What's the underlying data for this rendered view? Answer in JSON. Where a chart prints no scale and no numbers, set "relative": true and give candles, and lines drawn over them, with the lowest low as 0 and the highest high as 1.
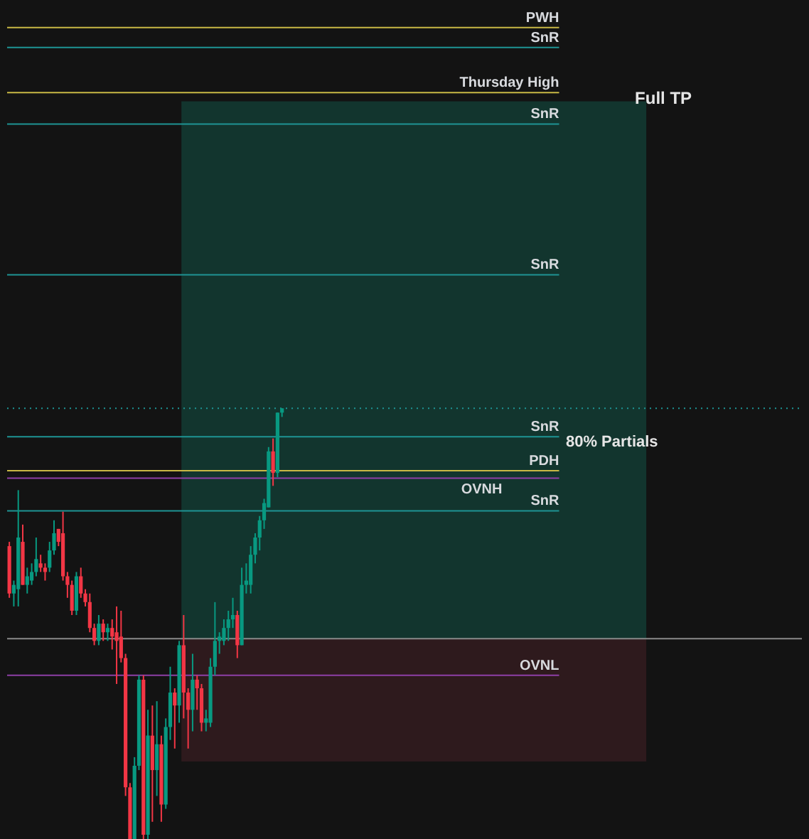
{
  "chart_data": {
    "type": "candlestick",
    "relative": true,
    "categories": [
      null,
      null,
      null,
      null,
      null,
      null,
      null,
      null,
      null,
      null,
      null,
      null,
      null,
      null,
      null,
      null,
      null,
      null,
      null,
      null,
      null,
      null,
      null,
      null,
      null,
      null,
      null,
      null,
      null,
      null,
      null,
      null,
      null,
      null,
      null,
      null,
      null,
      null,
      null,
      null,
      null,
      null,
      null,
      null,
      null,
      null,
      null,
      null,
      null,
      null,
      null,
      null,
      null,
      null,
      null,
      null,
      null,
      null,
      null,
      null,
      null,
      null
    ],
    "ohlc": [
      [
        0.68,
        0.69,
        0.56,
        0.57
      ],
      [
        0.57,
        0.6,
        0.54,
        0.59
      ],
      [
        0.58,
        0.81,
        0.54,
        0.7
      ],
      [
        0.69,
        0.73,
        0.59,
        0.59
      ],
      [
        0.59,
        0.63,
        0.57,
        0.61
      ],
      [
        0.6,
        0.64,
        0.59,
        0.62
      ],
      [
        0.62,
        0.7,
        0.61,
        0.65
      ],
      [
        0.64,
        0.66,
        0.62,
        0.63
      ],
      [
        0.63,
        0.64,
        0.6,
        0.62
      ],
      [
        0.63,
        0.69,
        0.62,
        0.67
      ],
      [
        0.67,
        0.74,
        0.66,
        0.71
      ],
      [
        0.72,
        0.72,
        0.68,
        0.69
      ],
      [
        0.71,
        0.76,
        0.6,
        0.61
      ],
      [
        0.61,
        0.62,
        0.56,
        0.59
      ],
      [
        0.59,
        0.6,
        0.52,
        0.53
      ],
      [
        0.53,
        0.62,
        0.52,
        0.61
      ],
      [
        0.61,
        0.63,
        0.56,
        0.57
      ],
      [
        0.57,
        0.58,
        0.54,
        0.55
      ],
      [
        0.55,
        0.57,
        0.48,
        0.49
      ],
      [
        0.49,
        0.5,
        0.45,
        0.46
      ],
      [
        0.46,
        0.52,
        0.45,
        0.5
      ],
      [
        0.5,
        0.51,
        0.46,
        0.48
      ],
      [
        0.48,
        0.5,
        0.46,
        0.49
      ],
      [
        0.49,
        0.51,
        0.44,
        0.47
      ],
      [
        0.48,
        0.54,
        0.36,
        0.46
      ],
      [
        0.47,
        0.53,
        0.41,
        0.42
      ],
      [
        0.42,
        0.43,
        0.1,
        0.12
      ],
      [
        0.12,
        0.13,
        0,
        0
      ],
      [
        0,
        0.19,
        0,
        0.17
      ],
      [
        0.17,
        0.38,
        0.16,
        0.37
      ],
      [
        0.37,
        0.38,
        0,
        0.01
      ],
      [
        0.01,
        0.3,
        0,
        0.24
      ],
      [
        0.24,
        0.31,
        0.04,
        0.16
      ],
      [
        0.16,
        0.32,
        0.1,
        0.22
      ],
      [
        0.22,
        0.24,
        0.04,
        0.08
      ],
      [
        0.08,
        0.28,
        0.07,
        0.26
      ],
      [
        0.26,
        0.4,
        0.23,
        0.34
      ],
      [
        0.34,
        0.35,
        0.21,
        0.31
      ],
      [
        0.31,
        0.46,
        0.27,
        0.45
      ],
      [
        0.45,
        0.52,
        0.28,
        0.34
      ],
      [
        0.34,
        0.35,
        0.21,
        0.3
      ],
      [
        0.3,
        0.43,
        0.25,
        0.37
      ],
      [
        0.37,
        0.38,
        0.3,
        0.35
      ],
      [
        0.35,
        0.36,
        0.25,
        0.27
      ],
      [
        0.27,
        0.3,
        0.25,
        0.28
      ],
      [
        0.27,
        0.42,
        0.26,
        0.4
      ],
      [
        0.4,
        0.55,
        0.38,
        0.46
      ],
      [
        0.46,
        0.48,
        0.43,
        0.47
      ],
      [
        0.46,
        0.51,
        0.45,
        0.49
      ],
      [
        0.49,
        0.53,
        0.46,
        0.51
      ],
      [
        0.51,
        0.56,
        0.49,
        0.52
      ],
      [
        0.52,
        0.53,
        0.42,
        0.45
      ],
      [
        0.45,
        0.63,
        0.45,
        0.59
      ],
      [
        0.59,
        0.64,
        0.57,
        0.6
      ],
      [
        0.59,
        0.68,
        0.57,
        0.66
      ],
      [
        0.66,
        0.71,
        0.64,
        0.7
      ],
      [
        0.7,
        0.75,
        0.67,
        0.74
      ],
      [
        0.74,
        0.79,
        0.72,
        0.78
      ],
      [
        0.77,
        0.91,
        0.77,
        0.9
      ],
      [
        0.9,
        0.93,
        0.82,
        0.85
      ],
      [
        0.85,
        0.99,
        0.84,
        0.99
      ],
      [
        0.99,
        1,
        0.98,
        1
      ]
    ],
    "ref_lines": [
      {
        "axis": "y",
        "value": 1.884,
        "label": "PWH",
        "color": "#c9b845"
      },
      {
        "axis": "y",
        "value": 1.838,
        "label": "SnR",
        "color": "#1e9494"
      },
      {
        "axis": "y",
        "value": 1.733,
        "label": "Thursday High",
        "color": "#c9b845"
      },
      {
        "axis": "y",
        "value": 1.66,
        "label": "SnR",
        "color": "#1e9494"
      },
      {
        "axis": "y",
        "value": 1.31,
        "label": "SnR",
        "color": "#1e9494"
      },
      {
        "axis": "y",
        "value": 1.0,
        "color": "#1e9494",
        "line_style": "dotted"
      },
      {
        "axis": "y",
        "value": 0.934,
        "label": "SnR",
        "color": "#1e9494"
      },
      {
        "axis": "y",
        "value": 0.855,
        "label": "PDH",
        "color": "#c9b845"
      },
      {
        "axis": "y",
        "value": 0.838,
        "label": "OVNH",
        "color": "#8e3fa6"
      },
      {
        "axis": "y",
        "value": 0.762,
        "label": "SnR",
        "color": "#1e9494"
      },
      {
        "axis": "y",
        "value": 0.465,
        "color": "#8a8a8a"
      },
      {
        "axis": "y",
        "value": 0.38,
        "label": "OVNL",
        "color": "#8e3fa6"
      }
    ],
    "bands": [
      {
        "axis": "y",
        "from": 0.465,
        "to": 1.713,
        "label": "Full TP",
        "color": "#12352e"
      },
      {
        "axis": "y",
        "from": 0.18,
        "to": 0.465,
        "color": "#2e1a1d"
      }
    ],
    "annotations": [
      "80% Partials"
    ]
  }
}
